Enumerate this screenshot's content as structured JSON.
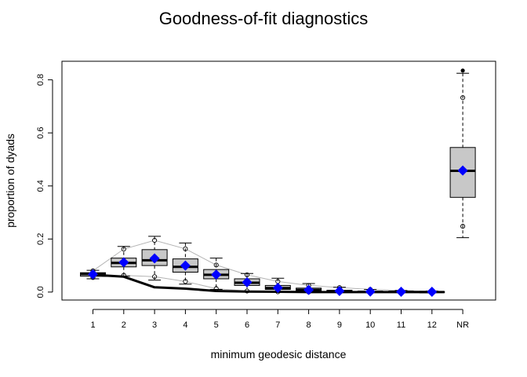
{
  "chart_data": {
    "type": "boxplot",
    "title": "Goodness-of-fit diagnostics",
    "xlabel": "minimum geodesic distance",
    "ylabel": "proportion of dyads",
    "categories": [
      "1",
      "2",
      "3",
      "4",
      "5",
      "6",
      "7",
      "8",
      "9",
      "10",
      "11",
      "12",
      "NR"
    ],
    "ylim": [
      -0.03,
      0.87
    ],
    "yticks": [
      "0.0",
      "0.2",
      "0.4",
      "0.6",
      "0.8"
    ],
    "boxes": [
      {
        "category": "1",
        "whisker_low": 0.05,
        "q1": 0.06,
        "median": 0.068,
        "q3": 0.073,
        "whisker_high": 0.082
      },
      {
        "category": "2",
        "whisker_low": 0.06,
        "q1": 0.095,
        "median": 0.11,
        "q3": 0.128,
        "whisker_high": 0.172
      },
      {
        "category": "3",
        "whisker_low": 0.045,
        "q1": 0.1,
        "median": 0.12,
        "q3": 0.16,
        "whisker_high": 0.21
      },
      {
        "category": "4",
        "whisker_low": 0.03,
        "q1": 0.075,
        "median": 0.095,
        "q3": 0.125,
        "whisker_high": 0.185
      },
      {
        "category": "5",
        "whisker_low": 0.01,
        "q1": 0.05,
        "median": 0.065,
        "q3": 0.085,
        "whisker_high": 0.128
      },
      {
        "category": "6",
        "whisker_low": 0.002,
        "q1": 0.025,
        "median": 0.035,
        "q3": 0.05,
        "whisker_high": 0.07
      },
      {
        "category": "7",
        "whisker_low": 0.0,
        "q1": 0.01,
        "median": 0.015,
        "q3": 0.025,
        "whisker_high": 0.052
      },
      {
        "category": "8",
        "whisker_low": 0.0,
        "q1": 0.003,
        "median": 0.008,
        "q3": 0.015,
        "whisker_high": 0.032
      },
      {
        "category": "9",
        "whisker_low": 0.0,
        "q1": 0.001,
        "median": 0.003,
        "q3": 0.007,
        "whisker_high": 0.018
      },
      {
        "category": "10",
        "whisker_low": 0.0,
        "q1": 0.0,
        "median": 0.001,
        "q3": 0.003,
        "whisker_high": 0.01
      },
      {
        "category": "11",
        "whisker_low": 0.0,
        "q1": 0.0,
        "median": 0.001,
        "q3": 0.002,
        "whisker_high": 0.006
      },
      {
        "category": "12",
        "whisker_low": 0.0,
        "q1": 0.0,
        "median": 0.0,
        "q3": 0.001,
        "whisker_high": 0.004
      },
      {
        "category": "NR",
        "whisker_low": 0.205,
        "q1": 0.357,
        "median": 0.457,
        "q3": 0.545,
        "whisker_high": 0.825
      }
    ],
    "means": [
      0.067,
      0.112,
      0.127,
      0.1,
      0.066,
      0.037,
      0.016,
      0.008,
      0.004,
      0.002,
      0.001,
      0.001,
      0.458
    ],
    "observed": [
      0.065,
      0.058,
      0.018,
      0.013,
      0.004,
      0.002,
      0.001,
      0.0,
      0.0,
      0.0,
      0.0,
      0.0
    ],
    "observed_nr": 0.835,
    "band_low": [
      0.055,
      0.063,
      0.058,
      0.04,
      0.013,
      0.004,
      0.001,
      0.0,
      0.0,
      0.0,
      0.0,
      0.0
    ],
    "band_high": [
      0.08,
      0.162,
      0.195,
      0.163,
      0.102,
      0.065,
      0.04,
      0.025,
      0.017,
      0.01,
      0.006,
      0.003
    ],
    "band_nr": [
      0.248,
      0.733
    ],
    "grid": false,
    "colors": {
      "box_fill": "#c8c8c8",
      "mean_marker": "#0000ff",
      "observed_line": "#000000",
      "band_line": "#b4b4b4"
    }
  }
}
